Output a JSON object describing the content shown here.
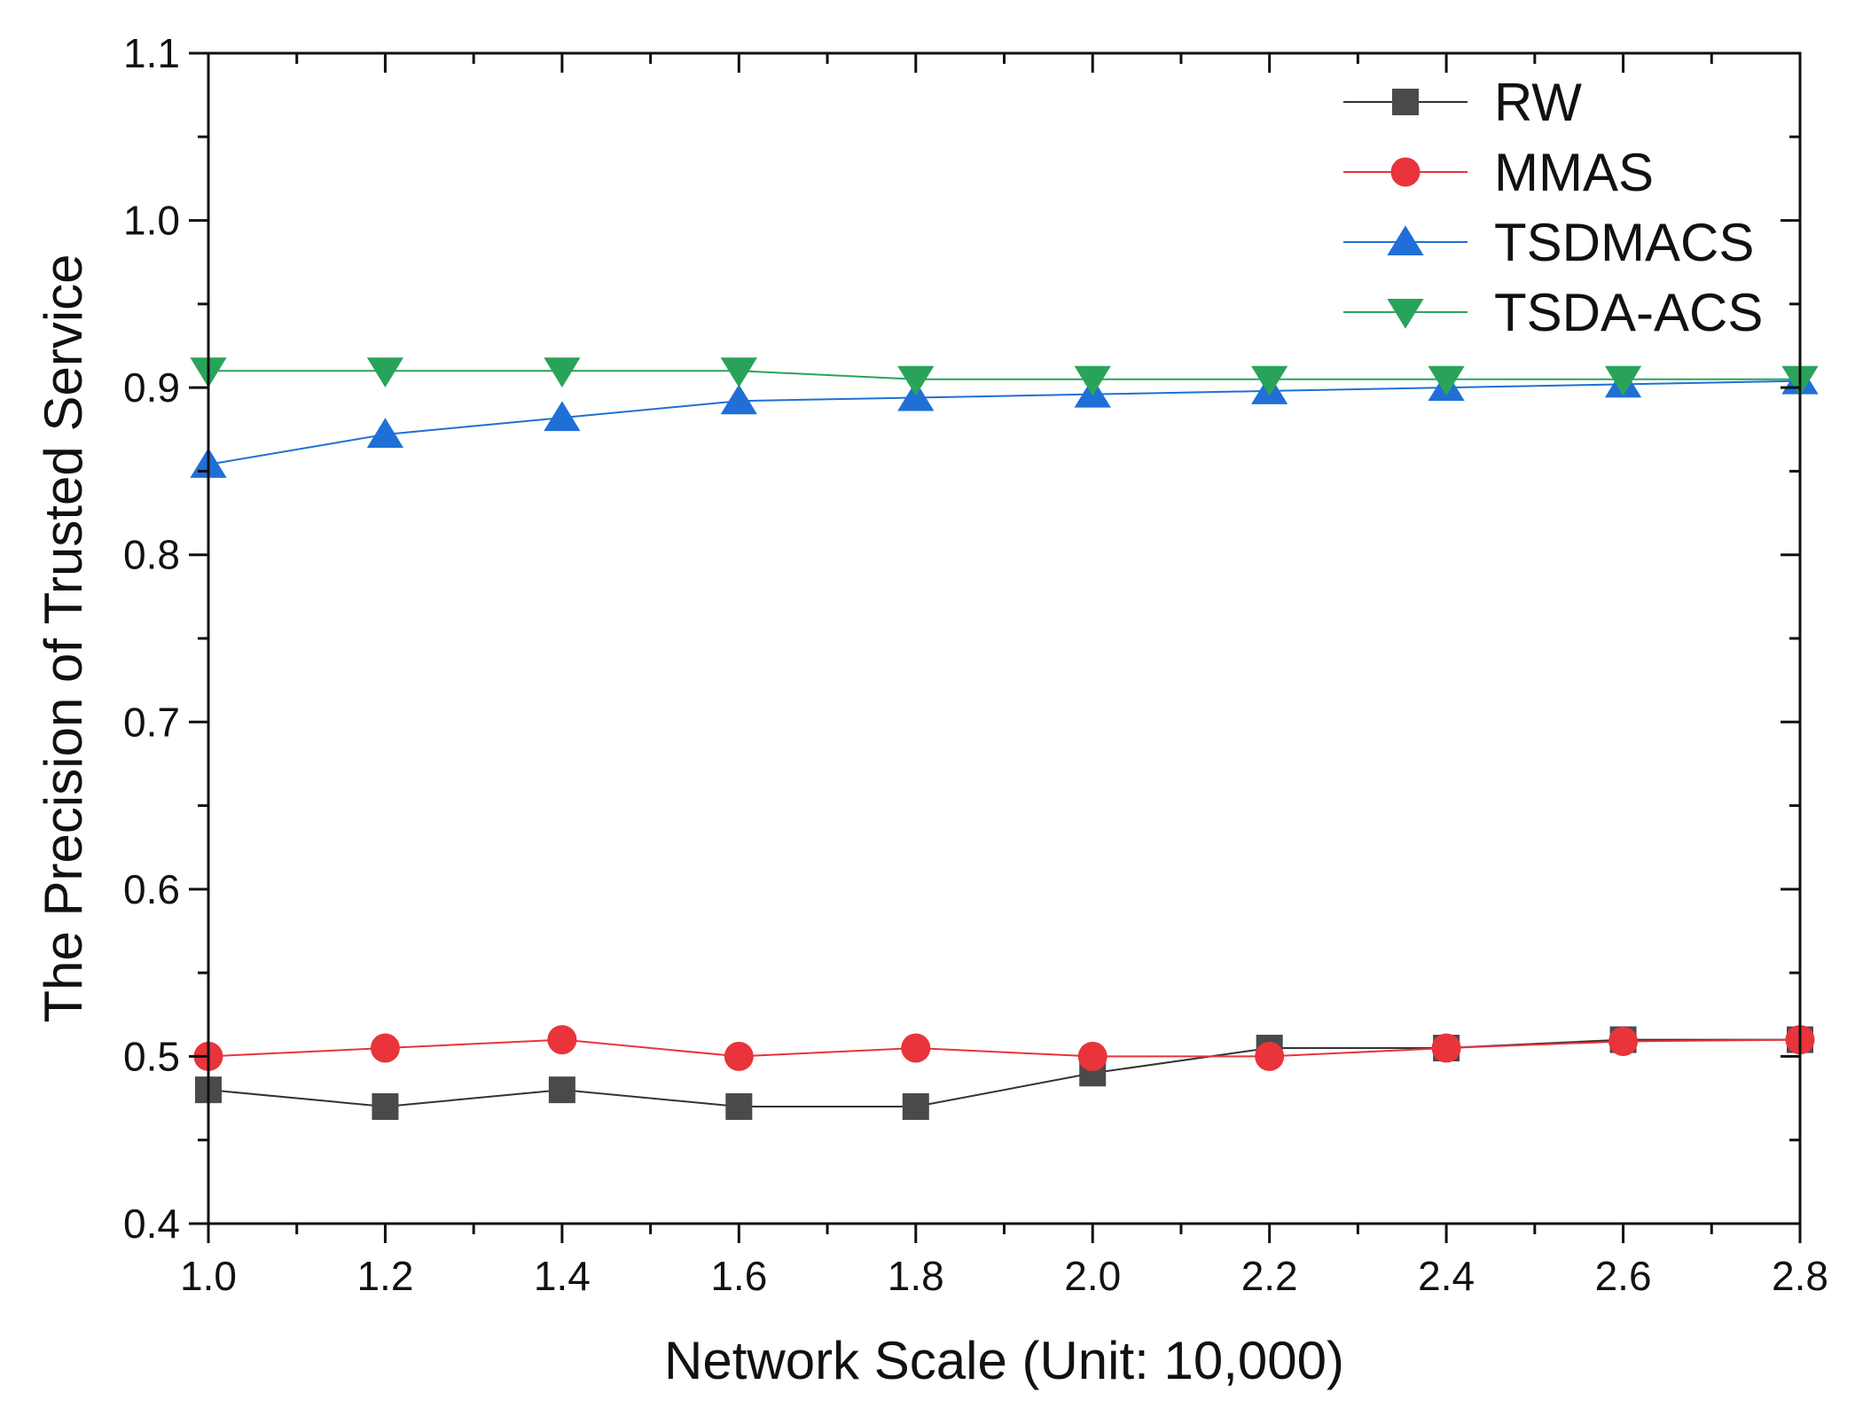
{
  "chart_data": {
    "type": "line",
    "title": "",
    "xlabel": "Network Scale (Unit: 10,000)",
    "ylabel": "The Precision of Trusted Service",
    "xlim": [
      1.0,
      2.8
    ],
    "ylim": [
      0.4,
      1.1
    ],
    "x": [
      1.0,
      1.2,
      1.4,
      1.6,
      1.8,
      2.0,
      2.2,
      2.4,
      2.6,
      2.8
    ],
    "xticks": [
      "1.0",
      "1.2",
      "1.4",
      "1.6",
      "1.8",
      "2.0",
      "2.2",
      "2.4",
      "2.6",
      "2.8"
    ],
    "yticks": [
      "0.4",
      "0.5",
      "0.6",
      "0.7",
      "0.8",
      "0.9",
      "1.0",
      "1.1"
    ],
    "grid": false,
    "legend_position": "top-right",
    "series": [
      {
        "name": "RW",
        "marker": "square",
        "color": "#4a4a4a",
        "line_color": "#333333",
        "values": [
          0.48,
          0.47,
          0.48,
          0.47,
          0.47,
          0.49,
          0.505,
          0.505,
          0.51,
          0.51
        ]
      },
      {
        "name": "MMAS",
        "marker": "circle",
        "color": "#e8343a",
        "line_color": "#e8343a",
        "values": [
          0.5,
          0.505,
          0.51,
          0.5,
          0.505,
          0.5,
          0.5,
          0.505,
          0.509,
          0.51
        ]
      },
      {
        "name": "TSDMACS",
        "marker": "triangle-up",
        "color": "#1f6fd6",
        "line_color": "#1f6fd6",
        "values": [
          0.854,
          0.872,
          0.882,
          0.892,
          0.894,
          0.896,
          0.898,
          0.9,
          0.902,
          0.904
        ]
      },
      {
        "name": "TSDA-ACS",
        "marker": "triangle-down",
        "color": "#2aa35a",
        "line_color": "#2aa35a",
        "values": [
          0.91,
          0.91,
          0.91,
          0.91,
          0.905,
          0.905,
          0.905,
          0.905,
          0.905,
          0.905
        ]
      }
    ]
  }
}
